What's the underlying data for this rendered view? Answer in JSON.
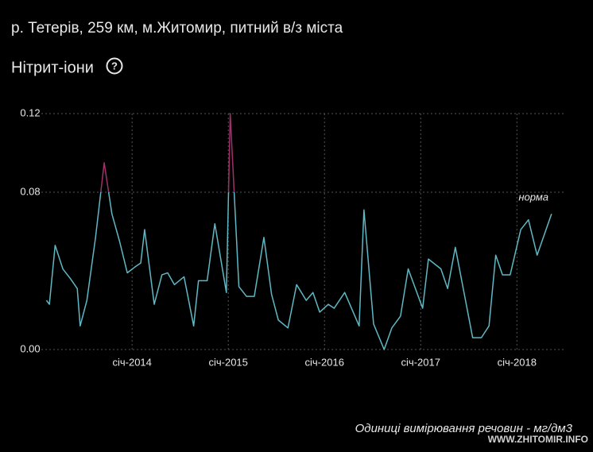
{
  "header": {
    "title": "р. Тетерів, 259 км, м.Житомир, питний в/з міста",
    "subtitle": "Нітрит-іони",
    "help": "?"
  },
  "chart_data": {
    "type": "line",
    "x": [
      2013.11,
      2013.14,
      2013.2,
      2013.28,
      2013.36,
      2013.43,
      2013.46,
      2013.53,
      2013.62,
      2013.71,
      2013.79,
      2013.87,
      2013.95,
      2014.03,
      2014.09,
      2014.13,
      2014.23,
      2014.31,
      2014.37,
      2014.44,
      2014.54,
      2014.64,
      2014.69,
      2014.78,
      2014.86,
      2014.98,
      2015.02,
      2015.11,
      2015.19,
      2015.27,
      2015.37,
      2015.45,
      2015.52,
      2015.62,
      2015.71,
      2015.81,
      2015.88,
      2015.95,
      2016.04,
      2016.1,
      2016.21,
      2016.36,
      2016.41,
      2016.51,
      2016.62,
      2016.7,
      2016.79,
      2016.87,
      2017.02,
      2017.08,
      2017.21,
      2017.28,
      2017.36,
      2017.45,
      2017.54,
      2017.63,
      2017.71,
      2017.78,
      2017.85,
      2017.93,
      2018.04,
      2018.12,
      2018.21,
      2018.36
    ],
    "series": [
      {
        "color": "#5fb8c4",
        "values": [
          0.025,
          0.023,
          0.053,
          0.041,
          0.036,
          0.031,
          0.012,
          0.025,
          0.057,
          0.095,
          0.069,
          0.055,
          0.039,
          0.042,
          0.044,
          0.061,
          0.023,
          0.038,
          0.039,
          0.033,
          0.037,
          0.012,
          0.035,
          0.035,
          0.064,
          0.029,
          0.12,
          0.032,
          0.027,
          0.027,
          0.057,
          0.028,
          0.015,
          0.011,
          0.033,
          0.025,
          0.029,
          0.019,
          0.023,
          0.021,
          0.029,
          0.012,
          0.071,
          0.013,
          0,
          0.011,
          0.017,
          0.041,
          0.021,
          0.046,
          0.041,
          0.031,
          0.052,
          0.029,
          0.006,
          0.006,
          0.012,
          0.048,
          0.038,
          0.038,
          0.061,
          0.066,
          0.048,
          0.069
        ]
      }
    ],
    "norm": 0.08,
    "norm_label": "норма",
    "norm_color": "#a0306a",
    "xlim": [
      2013.04,
      2018.51
    ],
    "xticks": [
      {
        "value": 2014,
        "label": "січ-2014"
      },
      {
        "value": 2015,
        "label": "січ-2015"
      },
      {
        "value": 2016,
        "label": "січ-2016"
      },
      {
        "value": 2017,
        "label": "січ-2017"
      },
      {
        "value": 2018,
        "label": "січ-2018"
      }
    ],
    "ylim": [
      0,
      0.12
    ],
    "yticks": [
      {
        "value": 0,
        "label": "0.00"
      },
      0.08,
      0.12
    ],
    "grid": true,
    "note": "Одиниці вимірювання речовин - мг/дм3"
  },
  "watermark": "WWW.ZHITOMIR.INFO"
}
